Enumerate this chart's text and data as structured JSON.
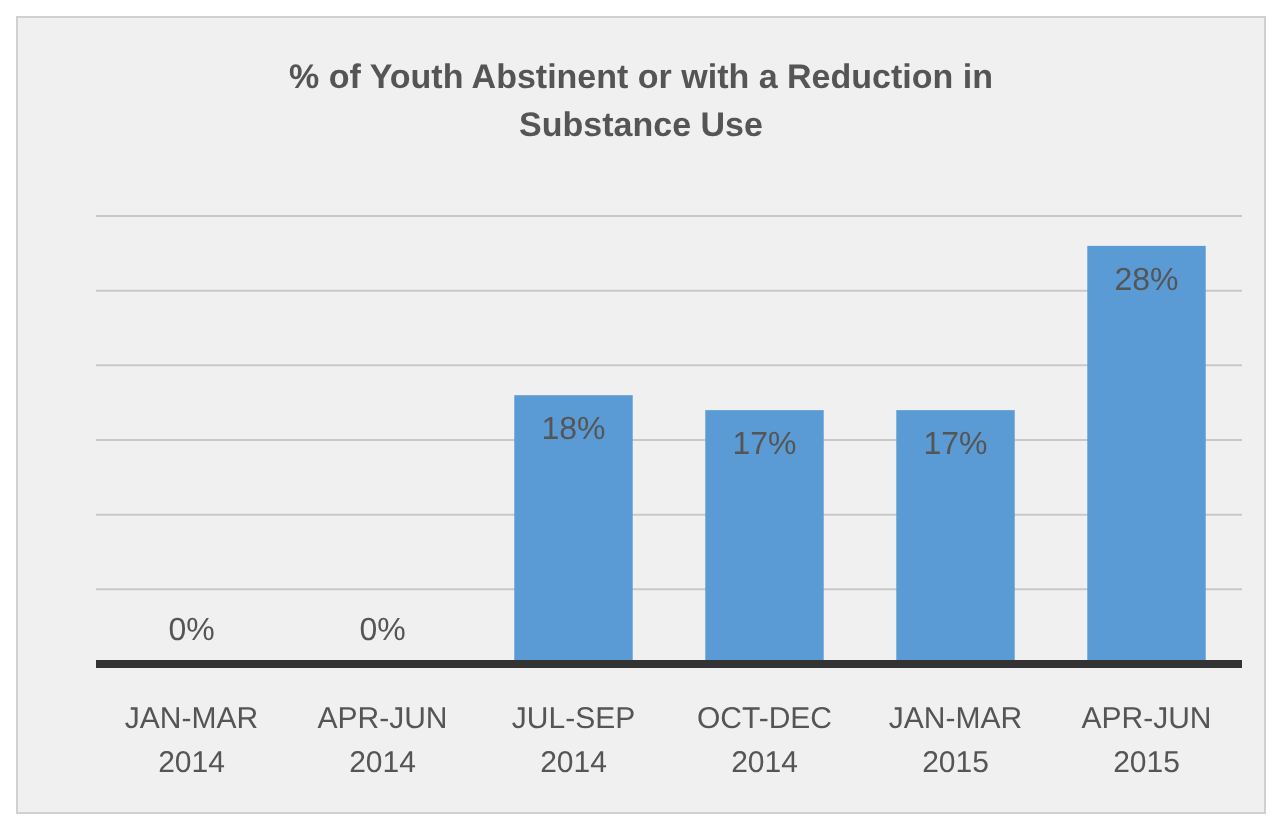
{
  "chart_data": {
    "type": "bar",
    "title": "% of Youth Abstinent or with a Reduction in Substance Use",
    "categories": [
      "JAN-MAR 2014",
      "APR-JUN 2014",
      "JUL-SEP 2014",
      "OCT-DEC 2014",
      "JAN-MAR 2015",
      "APR-JUN 2015"
    ],
    "values": [
      0,
      0,
      18,
      17,
      17,
      28
    ],
    "color": "#5b9bd5",
    "value_labels": [
      "0%",
      "0%",
      "18%",
      "17%",
      "17%",
      "28%"
    ],
    "ylim": [
      0,
      30
    ],
    "yticks": [
      {
        "value": 0,
        "label": null
      },
      {
        "value": 5,
        "label": null
      },
      {
        "value": 10,
        "label": null
      },
      {
        "value": 15,
        "label": null
      },
      {
        "value": 20,
        "label": null
      },
      {
        "value": 25,
        "label": null
      },
      {
        "value": 30,
        "label": null
      }
    ],
    "tick_labels": "x",
    "grid": "y"
  }
}
